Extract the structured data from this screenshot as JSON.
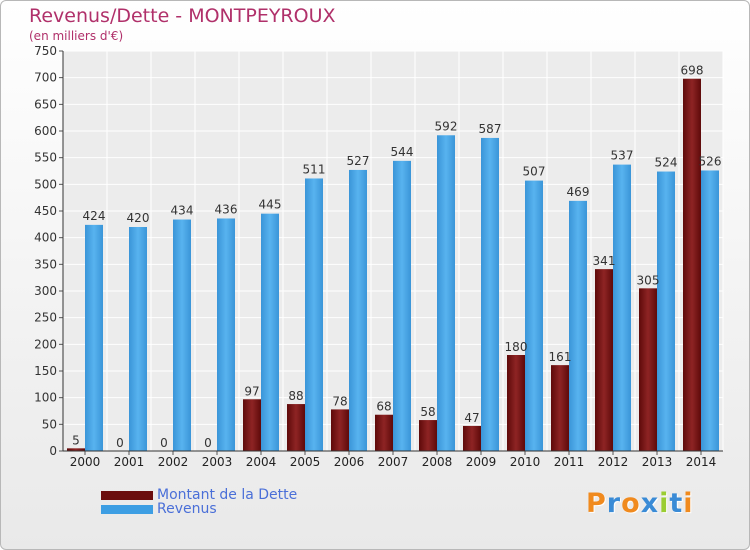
{
  "header": {
    "title": "Revenus/Dette - MONTPEYROUX",
    "subtitle": "(en milliers d'€)"
  },
  "colors": {
    "debt": "#7a1212",
    "revenue": "#3d9ee3",
    "title": "#b0306a"
  },
  "legend": [
    {
      "label": "Montant de la Dette",
      "color": "#6b0d0d"
    },
    {
      "label": "Revenus",
      "color": "#3d9ee3"
    }
  ],
  "logo": {
    "text": "Proxiti",
    "letter_colors": [
      "#f08a1e",
      "#3a8bd6",
      "#f08a1e",
      "#3a8bd6",
      "#9acd32",
      "#3a8bd6",
      "#f08a1e"
    ]
  },
  "chart_data": {
    "type": "bar",
    "categories": [
      "2000",
      "2001",
      "2002",
      "2003",
      "2004",
      "2005",
      "2006",
      "2007",
      "2008",
      "2009",
      "2010",
      "2011",
      "2012",
      "2013",
      "2014"
    ],
    "series": [
      {
        "name": "Montant de la Dette",
        "values": [
          5,
          0,
          0,
          0,
          97,
          88,
          78,
          68,
          58,
          47,
          180,
          161,
          341,
          305,
          698
        ]
      },
      {
        "name": "Revenus",
        "values": [
          424,
          420,
          434,
          436,
          445,
          511,
          527,
          544,
          592,
          587,
          507,
          469,
          537,
          524,
          526
        ]
      }
    ],
    "ylim": [
      0,
      750
    ],
    "yticks": [
      0,
      50,
      100,
      150,
      200,
      250,
      300,
      350,
      400,
      450,
      500,
      550,
      600,
      650,
      700,
      750
    ],
    "grid": true
  }
}
